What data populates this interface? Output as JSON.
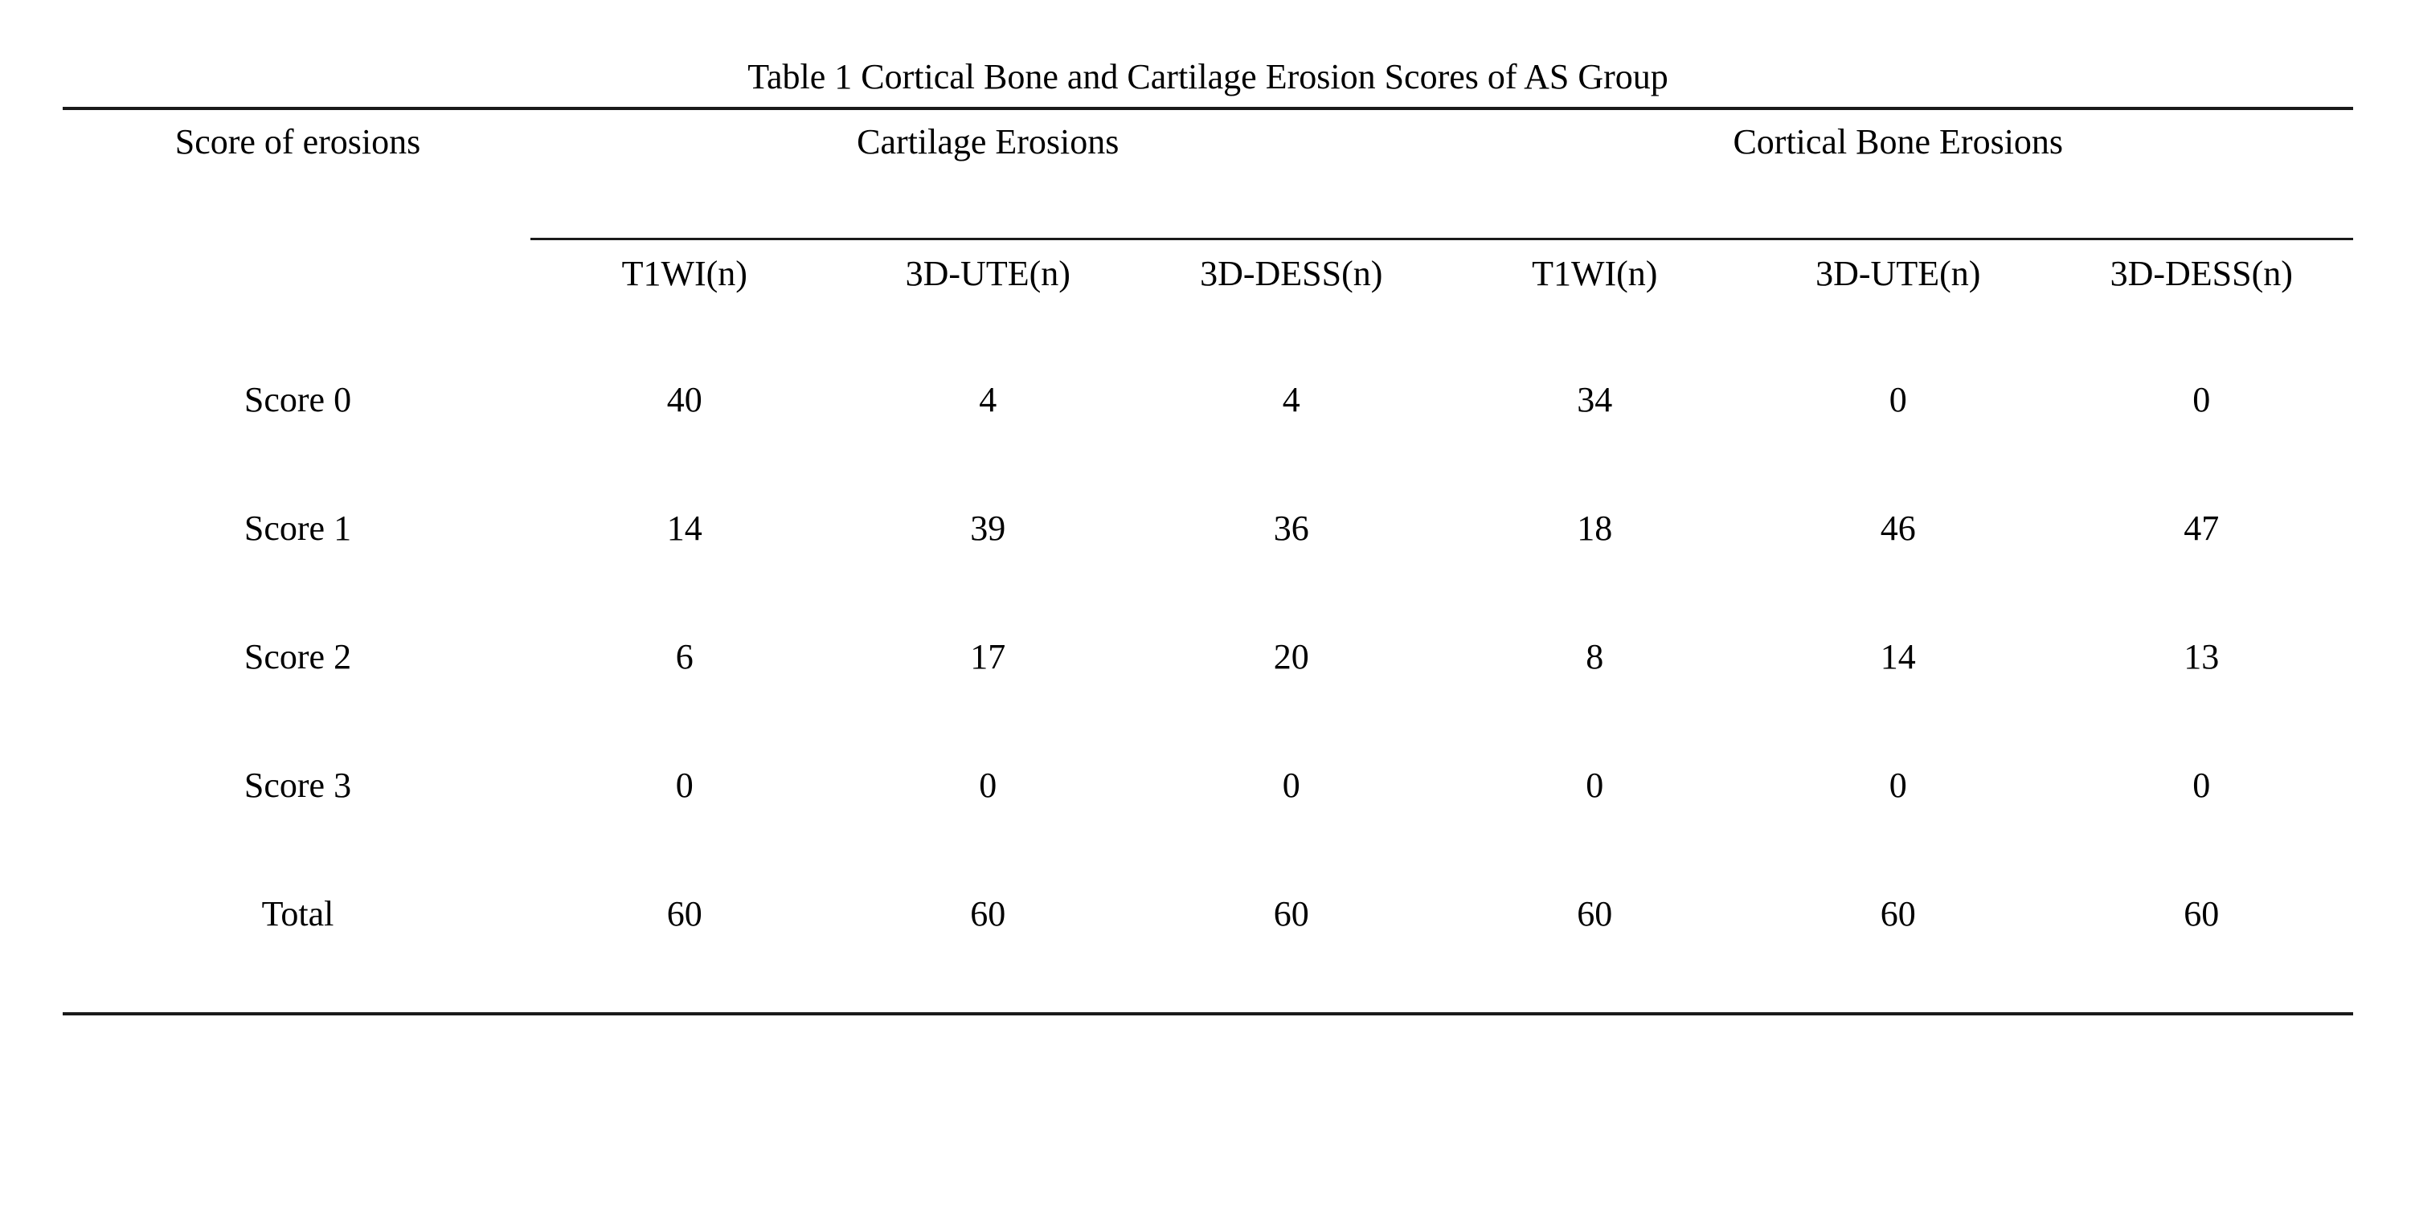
{
  "title": "Table 1 Cortical Bone and Cartilage Erosion Scores of AS Group",
  "table": {
    "row_header": "Score of erosions",
    "groups": [
      {
        "label": "Cartilage Erosions"
      },
      {
        "label": "Cortical Bone Erosions"
      }
    ],
    "subheaders": [
      "T1WI(n)",
      "3D-UTE(n)",
      "3D-DESS(n)",
      "T1WI(n)",
      "3D-UTE(n)",
      "3D-DESS(n)"
    ],
    "rows": [
      {
        "label": "Score 0",
        "values": [
          "40",
          "4",
          "4",
          "34",
          "0",
          "0"
        ]
      },
      {
        "label": "Score 1",
        "values": [
          "14",
          "39",
          "36",
          "18",
          "46",
          "47"
        ]
      },
      {
        "label": "Score 2",
        "values": [
          "6",
          "17",
          "20",
          "8",
          "14",
          "13"
        ]
      },
      {
        "label": "Score 3",
        "values": [
          "0",
          "0",
          "0",
          "0",
          "0",
          "0"
        ]
      },
      {
        "label": "Total",
        "values": [
          "60",
          "60",
          "60",
          "60",
          "60",
          "60"
        ]
      }
    ]
  }
}
